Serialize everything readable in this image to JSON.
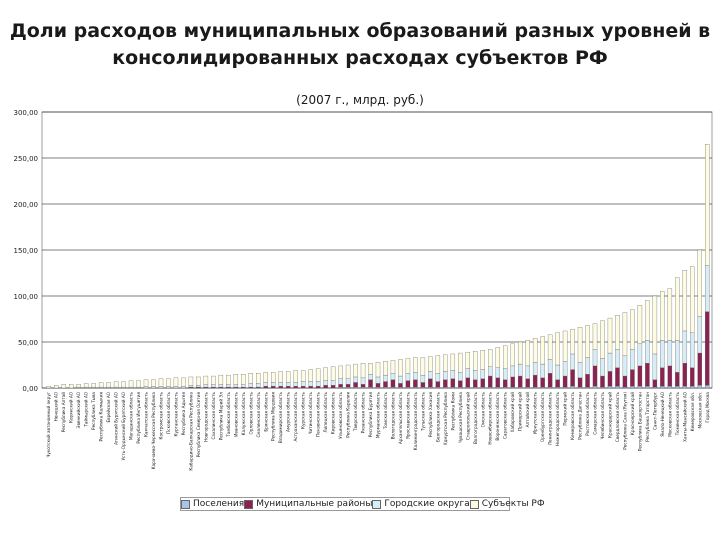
{
  "title_line1": "Доли расходов муниципальных образований разных уровней в",
  "title_line2": "консолидированных расходах субъектов РФ",
  "subtitle": "(2007 г., млрд. руб.)",
  "chart_data": {
    "type": "bar",
    "stacked": true,
    "ylim": [
      0,
      300
    ],
    "yticks": [
      "0,00",
      "50,00",
      "100,00",
      "150,00",
      "200,00",
      "250,00",
      "300,00"
    ],
    "grid": true,
    "legend_position": "bottom",
    "series": [
      {
        "name": "Поселения",
        "color": "#a9c4e6"
      },
      {
        "name": "Муниципальные районы",
        "color": "#8b2252"
      },
      {
        "name": "Городские округа",
        "color": "#d7eef8"
      },
      {
        "name": "Субъекты РФ",
        "color": "#fdfbe0"
      }
    ],
    "totals": [
      2,
      3,
      4,
      4,
      4,
      5,
      5,
      6,
      6,
      7,
      7,
      8,
      8,
      9,
      9,
      10,
      10,
      11,
      11,
      12,
      12,
      13,
      13,
      14,
      14,
      15,
      15,
      16,
      16,
      17,
      17,
      18,
      18,
      19,
      19,
      20,
      21,
      22,
      23,
      24,
      25,
      26,
      27,
      27,
      28,
      29,
      30,
      31,
      32,
      33,
      33,
      34,
      35,
      36,
      37,
      38,
      39,
      40,
      41,
      42,
      44,
      46,
      48,
      50,
      52,
      54,
      56,
      58,
      60,
      62,
      64,
      66,
      68,
      70,
      73,
      76,
      79,
      82,
      85,
      90,
      95,
      100,
      105,
      108,
      120,
      128,
      132,
      150,
      265
    ],
    "municipal_districts": [
      0,
      0,
      0,
      0,
      0,
      0,
      0,
      0,
      0,
      0,
      0,
      0,
      0,
      0,
      0,
      0,
      0,
      0,
      0,
      1,
      1,
      1,
      1,
      1,
      1,
      1,
      1,
      1,
      1,
      2,
      2,
      2,
      2,
      2,
      2,
      2,
      2,
      3,
      3,
      3,
      3,
      5,
      3,
      8,
      4,
      6,
      8,
      4,
      7,
      8,
      5,
      9,
      6,
      8,
      9,
      7,
      10,
      8,
      9,
      12,
      10,
      8,
      11,
      12,
      9,
      13,
      10,
      15,
      8,
      12,
      18,
      10,
      14,
      22,
      12,
      16,
      20,
      12,
      18,
      22,
      25,
      8,
      20,
      22,
      15,
      25,
      20,
      35,
      80
    ],
    "city_districts": [
      0,
      0,
      0,
      0,
      1,
      1,
      1,
      1,
      1,
      1,
      1,
      1,
      1,
      2,
      2,
      2,
      2,
      2,
      2,
      2,
      2,
      3,
      3,
      3,
      3,
      3,
      3,
      4,
      4,
      4,
      4,
      4,
      4,
      4,
      5,
      5,
      5,
      5,
      5,
      6,
      6,
      6,
      7,
      6,
      7,
      7,
      7,
      8,
      8,
      8,
      8,
      8,
      9,
      9,
      9,
      9,
      10,
      10,
      10,
      10,
      11,
      12,
      12,
      13,
      14,
      14,
      15,
      15,
      16,
      16,
      17,
      17,
      18,
      18,
      19,
      20,
      20,
      22,
      22,
      24,
      25,
      28,
      30,
      28,
      35,
      35,
      38,
      40,
      50
    ],
    "settlements": [
      0,
      0,
      0,
      0,
      0,
      0,
      0,
      0,
      0,
      0,
      0,
      0,
      0,
      0,
      0,
      0,
      0,
      0,
      0,
      0,
      0,
      0,
      0,
      0,
      0,
      0,
      0,
      0,
      0,
      0,
      0,
      0,
      0,
      0,
      0,
      0,
      0,
      0,
      0,
      1,
      1,
      1,
      1,
      1,
      1,
      1,
      1,
      1,
      1,
      1,
      1,
      1,
      1,
      1,
      1,
      1,
      1,
      1,
      1,
      1,
      1,
      1,
      1,
      1,
      1,
      1,
      1,
      1,
      1,
      1,
      2,
      1,
      1,
      2,
      1,
      2,
      2,
      1,
      2,
      2,
      2,
      1,
      2,
      2,
      2,
      2,
      2,
      3,
      3
    ],
    "categories": [
      "Чукотский автономный округ",
      "Ненецкий АО",
      "Республика Алтай",
      "Корякский АО",
      "Эвенкийский АО",
      "Таймырский АО",
      "Республика Тыва",
      "Республика Калмыкия",
      "Еврейская АО",
      "Агинский Бурятский АО",
      "Усть-Ордынский Бурятский АО",
      "Магаданская область",
      "Республика Ингушетия",
      "Камчатская область",
      "Карачаево-Черкесская Республика",
      "Костромская область",
      "Псковская область",
      "Курганская область",
      "Республика Адыгея",
      "Кабардино-Балкарская Республика",
      "Республика Северная Осетия",
      "Новгородская область",
      "Сахалинская область",
      "Республика Марий Эл",
      "Тамбовская область",
      "Ивановская область",
      "Калужская область",
      "Орловская область",
      "Смоленская область",
      "Брянская область",
      "Республика Мордовия",
      "Владимирская область",
      "Амурская область",
      "Астраханская область",
      "Курская область",
      "Читинская область",
      "Пензенская область",
      "Липецкая область",
      "Кировская область",
      "Ульяновская область",
      "Республика Карелия",
      "Тверская область",
      "Рязанская область",
      "Республика Бурятия",
      "Мурманская область",
      "Томская область",
      "Вологодская область",
      "Архангельская область",
      "Ярославская область",
      "Калининградская область",
      "Тульская область",
      "Республика Хакасия",
      "Белгородская область",
      "Удмуртская Республика",
      "Республика Коми",
      "Чувашская Республика",
      "Ставропольский край",
      "Волгоградская область",
      "Омская область",
      "Новосибирская область",
      "Воронежская область",
      "Саратовская область",
      "Хабаровский край",
      "Приморский край",
      "Алтайский край",
      "Иркутская область",
      "Оренбургская область",
      "Ленинградская область",
      "Нижегородская область",
      "Пермский край",
      "Кемеровская область",
      "Республика Дагестан",
      "Ростовская область",
      "Самарская область",
      "Челябинская область",
      "Краснодарский край",
      "Свердловская область",
      "Республика Саха (Якутия)",
      "Красноярский край",
      "Республика Башкортостан",
      "Республика Татарстан",
      "Санкт-Петербург",
      "Ямало-Ненецкий АО",
      "Московская область",
      "Тюменская область",
      "Ханты-Мансийский АО",
      "Кемеровская обл.",
      "Московская обл.",
      "Город Москва"
    ],
    "categories_note": "Category labels are rotated and only partially legible; names read as best possible."
  }
}
